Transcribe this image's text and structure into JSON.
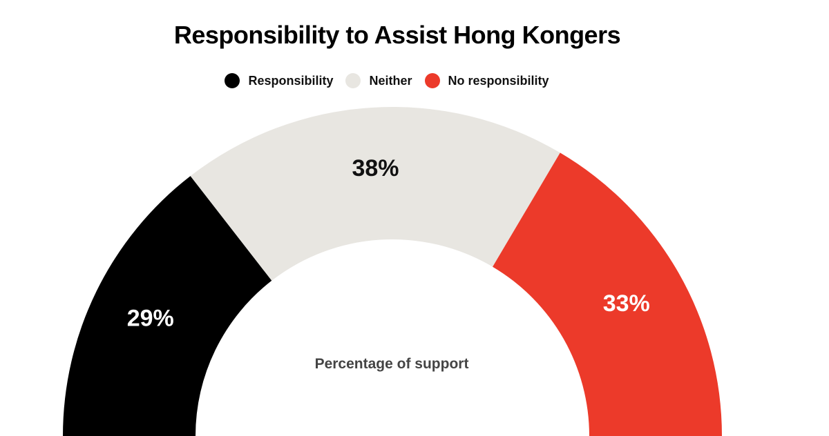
{
  "chart_data": {
    "type": "pie",
    "variant": "semicircle-gauge",
    "title": "Responsibility to Assist Hong Kongers",
    "center_label": "Percentage of support",
    "categories": [
      "Responsibility",
      "Neither",
      "No responsibility"
    ],
    "values": [
      29,
      38,
      33
    ],
    "value_labels": [
      "29%",
      "38%",
      "33%"
    ],
    "colors": [
      "#000000",
      "#e8e6e1",
      "#ec3a2a"
    ],
    "label_colors": [
      "#ffffff",
      "#111111",
      "#ffffff"
    ],
    "legend_position": "top-center"
  }
}
